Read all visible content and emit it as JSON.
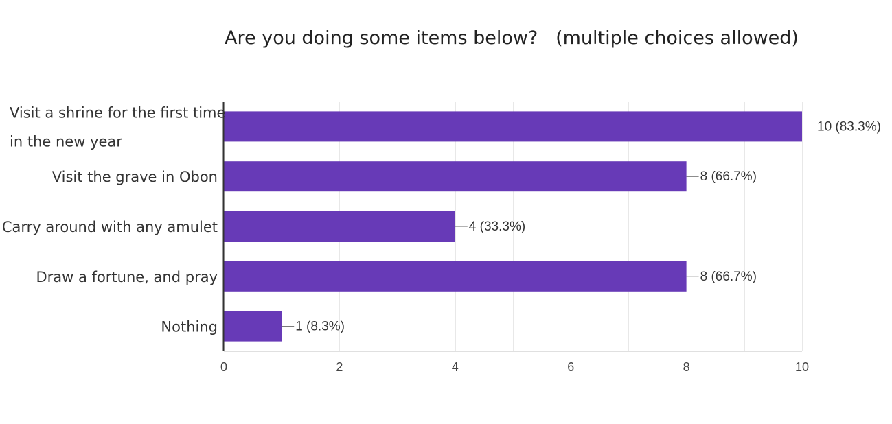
{
  "chart_data": {
    "type": "bar",
    "orientation": "horizontal",
    "title": "Are you doing some items below?   (multiple choices allowed)",
    "categories": [
      [
        "Visit a shrine for the first time",
        "in the new year"
      ],
      [
        "Visit the grave in Obon"
      ],
      [
        "Carry around with any amulet"
      ],
      [
        "Draw a fortune, and pray"
      ],
      [
        "Nothing"
      ]
    ],
    "values": [
      10,
      8,
      4,
      8,
      1
    ],
    "data_labels": [
      "10 (83.3%)",
      "8 (66.7%)",
      "4 (33.3%)",
      "8 (66.7%)",
      "1 (8.3%)"
    ],
    "xlim": [
      0,
      10
    ],
    "xticks": [
      "0",
      "2",
      "4",
      "6",
      "8",
      "10"
    ],
    "grid": true,
    "bar_color": "#673ab7"
  }
}
